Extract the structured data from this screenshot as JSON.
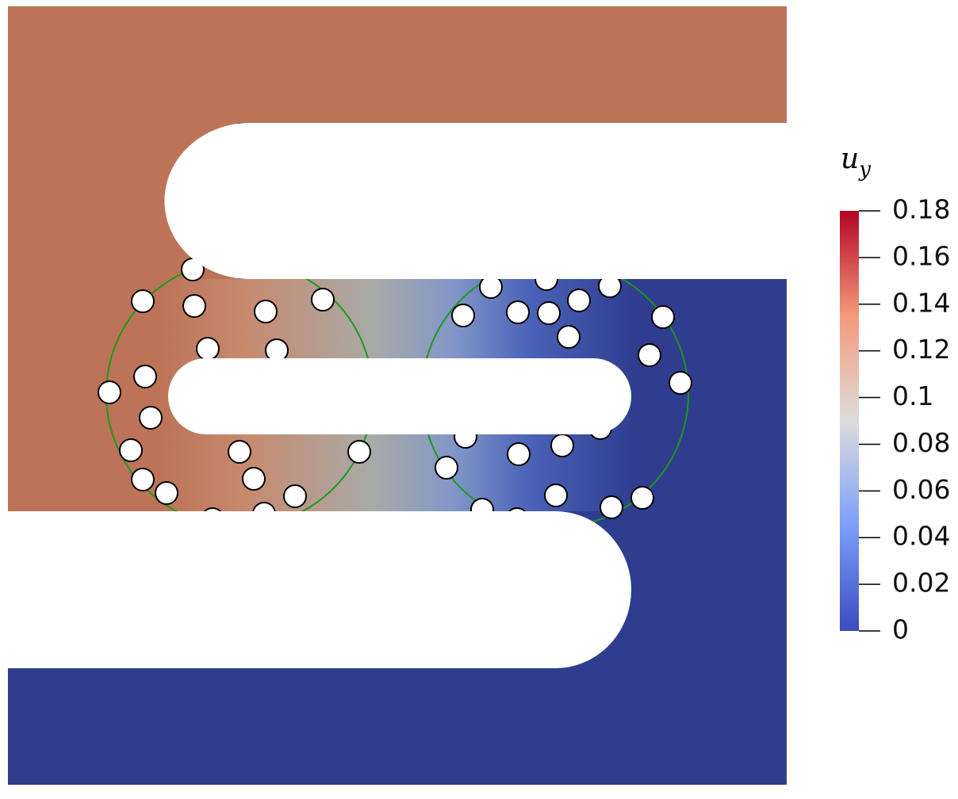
{
  "colorbar": {
    "title": "u",
    "title_subscript": "y",
    "range": [
      0,
      0.18
    ],
    "ticks": [
      0,
      0.02,
      0.04,
      0.06,
      0.08,
      0.1,
      0.12,
      0.14,
      0.16,
      0.18
    ]
  }
}
